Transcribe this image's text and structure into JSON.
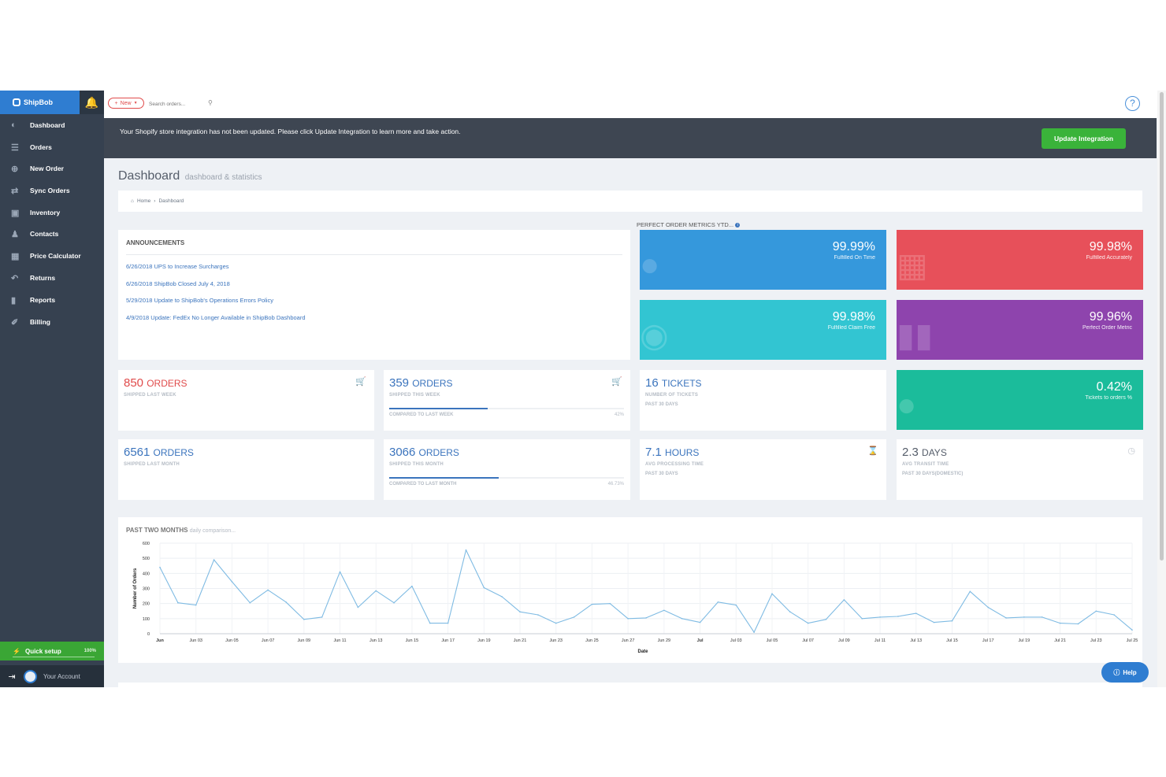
{
  "sidebar": {
    "brand": "ShipBob",
    "items": [
      {
        "label": "Dashboard",
        "icon": "dashboard-icon"
      },
      {
        "label": "Orders",
        "icon": "orders-icon"
      },
      {
        "label": "New Order",
        "icon": "plus-circle-icon"
      },
      {
        "label": "Sync Orders",
        "icon": "sync-icon"
      },
      {
        "label": "Inventory",
        "icon": "inventory-icon"
      },
      {
        "label": "Contacts",
        "icon": "contacts-icon"
      },
      {
        "label": "Price Calculator",
        "icon": "calculator-icon"
      },
      {
        "label": "Returns",
        "icon": "returns-icon"
      },
      {
        "label": "Reports",
        "icon": "reports-icon"
      },
      {
        "label": "Billing",
        "icon": "billing-icon"
      }
    ],
    "quick_setup": {
      "label": "Quick setup",
      "percent": "100%",
      "progress": 1.0
    },
    "account": "Your Account"
  },
  "topbar": {
    "new_label": "New",
    "search_placeholder": "Search orders...",
    "help": "?"
  },
  "alert": {
    "text": "Your Shopify store integration has not been updated. Please click Update Integration to learn more and take action.",
    "button": "Update Integration"
  },
  "page": {
    "title": "Dashboard",
    "subtitle": "dashboard & statistics"
  },
  "breadcrumb": {
    "home": "Home",
    "current": "Dashboard",
    "separator": "›"
  },
  "announcements": {
    "title": "ANNOUNCEMENTS",
    "items": [
      "6/26/2018 UPS to Increase Surcharges",
      "6/26/2018 ShipBob Closed July 4, 2018",
      "5/29/2018 Update to ShipBob's Operations Errors Policy",
      "4/9/2018 Update: FedEx No Longer Available in ShipBob Dashboard"
    ]
  },
  "metrics": {
    "label": "PERFECT ORDER METRICS YTD...",
    "info_icon": "info-icon",
    "tiles": [
      {
        "value": "99.99%",
        "label": "Fulfilled On Time",
        "color": "#3598dc",
        "icon": "chat-icon"
      },
      {
        "value": "99.98%",
        "label": "Fulfilled Accurately",
        "color": "#e7505a",
        "icon": "cart-icon"
      },
      {
        "value": "99.98%",
        "label": "Fulfilled Claim Free",
        "color": "#32c5d2",
        "icon": "globe-icon"
      },
      {
        "value": "99.96%",
        "label": "Perfect Order Metric",
        "color": "#8e44ad",
        "icon": "bar-chart-icon"
      },
      {
        "value": "0.42%",
        "label": "Tickets to orders %",
        "color": "#1bbc9b",
        "icon": "comment-icon"
      }
    ]
  },
  "stats": [
    {
      "num": "850",
      "unit": "ORDERS",
      "cap": "SHIPPED LAST WEEK",
      "color": "#e04b4b",
      "icon": "cart-icon"
    },
    {
      "num": "359",
      "unit": "ORDERS",
      "cap": "SHIPPED THIS WEEK",
      "color": "#3b74bd",
      "icon": "cart-icon",
      "compare": "COMPARED TO LAST WEEK",
      "compare_value": "42%",
      "progress": 0.42
    },
    {
      "num": "16",
      "unit": "TICKETS",
      "cap": "NUMBER OF TICKETS",
      "cap2": "PAST 30 DAYS",
      "color": "#3b74bd"
    },
    {
      "num": "6561",
      "unit": "ORDERS",
      "cap": "SHIPPED LAST MONTH",
      "color": "#3b74bd"
    },
    {
      "num": "3066",
      "unit": "ORDERS",
      "cap": "SHIPPED THIS MONTH",
      "color": "#3b74bd",
      "compare": "COMPARED TO LAST MONTH",
      "compare_value": "46.73%",
      "progress": 0.4673
    },
    {
      "num": "7.1",
      "unit": "HOURS",
      "cap": "AVG PROCESSING TIME",
      "cap2": "PAST 30 DAYS",
      "color": "#3b74bd",
      "icon": "hourglass-icon"
    },
    {
      "num": "2.3",
      "unit": "DAYS",
      "cap": "AVG TRANSIT TIME",
      "cap2": "PAST 30 DAYS(DOMESTIC)",
      "color": "#555d6a",
      "icon": "clock-icon"
    }
  ],
  "chart_card": {
    "title": "PAST TWO MONTHS",
    "subtitle": "daily comparison..."
  },
  "chart_data": {
    "type": "line",
    "xlabel": "Date",
    "ylabel": "Number of Orders",
    "ylim": [
      0,
      600
    ],
    "yticks": [
      0,
      100,
      200,
      300,
      400,
      500,
      600
    ],
    "grid": true,
    "x": [
      "Jun 01",
      "Jun 02",
      "Jun 03",
      "Jun 04",
      "Jun 05",
      "Jun 06",
      "Jun 07",
      "Jun 08",
      "Jun 09",
      "Jun 10",
      "Jun 11",
      "Jun 12",
      "Jun 13",
      "Jun 14",
      "Jun 15",
      "Jun 16",
      "Jun 17",
      "Jun 18",
      "Jun 19",
      "Jun 20",
      "Jun 21",
      "Jun 22",
      "Jun 23",
      "Jun 24",
      "Jun 25",
      "Jun 26",
      "Jun 27",
      "Jun 28",
      "Jun 29",
      "Jun 30",
      "Jul 01",
      "Jul 02",
      "Jul 03",
      "Jul 04",
      "Jul 05",
      "Jul 06",
      "Jul 07",
      "Jul 08",
      "Jul 09",
      "Jul 10",
      "Jul 11",
      "Jul 12",
      "Jul 13",
      "Jul 14",
      "Jul 15",
      "Jul 16",
      "Jul 17",
      "Jul 18",
      "Jul 19",
      "Jul 20",
      "Jul 21",
      "Jul 22",
      "Jul 23",
      "Jul 24",
      "Jul 25"
    ],
    "x_tick_labels": [
      {
        "index": 0,
        "label": "Jun",
        "bold": true
      },
      {
        "index": 2,
        "label": "Jun 03"
      },
      {
        "index": 4,
        "label": "Jun 05"
      },
      {
        "index": 6,
        "label": "Jun 07"
      },
      {
        "index": 8,
        "label": "Jun 09"
      },
      {
        "index": 10,
        "label": "Jun 11"
      },
      {
        "index": 12,
        "label": "Jun 13"
      },
      {
        "index": 14,
        "label": "Jun 15"
      },
      {
        "index": 16,
        "label": "Jun 17"
      },
      {
        "index": 18,
        "label": "Jun 19"
      },
      {
        "index": 20,
        "label": "Jun 21"
      },
      {
        "index": 22,
        "label": "Jun 23"
      },
      {
        "index": 24,
        "label": "Jun 25"
      },
      {
        "index": 26,
        "label": "Jun 27"
      },
      {
        "index": 28,
        "label": "Jun 29"
      },
      {
        "index": 30,
        "label": "Jul",
        "bold": true
      },
      {
        "index": 32,
        "label": "Jul 03"
      },
      {
        "index": 34,
        "label": "Jul 05"
      },
      {
        "index": 36,
        "label": "Jul 07"
      },
      {
        "index": 38,
        "label": "Jul 09"
      },
      {
        "index": 40,
        "label": "Jul 11"
      },
      {
        "index": 42,
        "label": "Jul 13"
      },
      {
        "index": 44,
        "label": "Jul 15"
      },
      {
        "index": 46,
        "label": "Jul 17"
      },
      {
        "index": 48,
        "label": "Jul 19"
      },
      {
        "index": 50,
        "label": "Jul 21"
      },
      {
        "index": 52,
        "label": "Jul 23"
      },
      {
        "index": 54,
        "label": "Jul 25"
      }
    ],
    "series": [
      {
        "color": "#7fbbe3",
        "values": [
          440,
          205,
          190,
          490,
          345,
          205,
          290,
          210,
          95,
          110,
          410,
          175,
          285,
          205,
          315,
          70,
          70,
          555,
          305,
          245,
          145,
          125,
          70,
          110,
          195,
          200,
          100,
          105,
          155,
          100,
          75,
          210,
          190,
          10,
          265,
          145,
          70,
          95,
          225,
          100,
          110,
          115,
          135,
          75,
          85,
          280,
          175,
          105,
          110,
          110,
          70,
          65,
          150,
          125,
          25
        ]
      }
    ]
  }
}
